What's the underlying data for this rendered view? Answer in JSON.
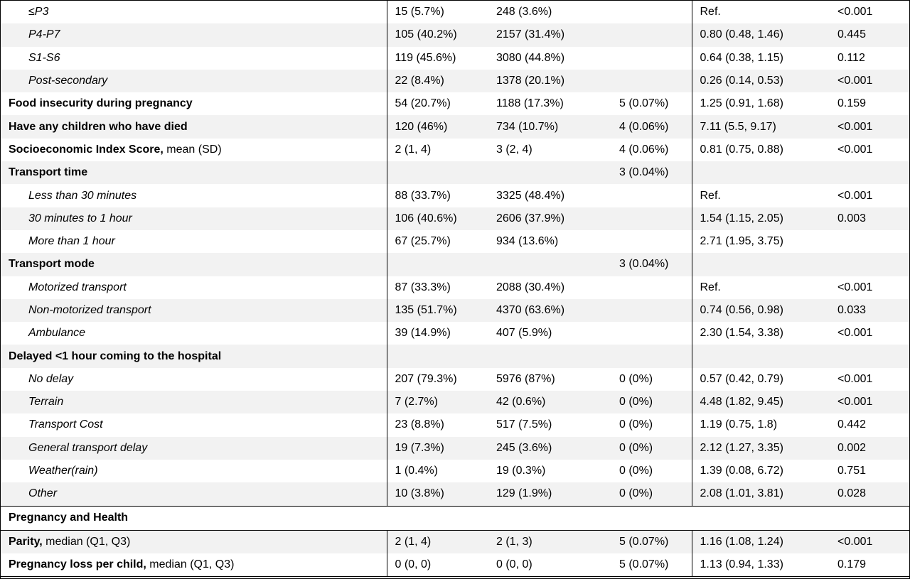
{
  "rows": [
    {
      "kind": "sub",
      "label": "≤P3",
      "c1": "15 (5.7%)",
      "c2": "248 (3.6%)",
      "c3": "",
      "c4": "Ref.",
      "c5": "<0.001"
    },
    {
      "kind": "sub",
      "label": "P4-P7",
      "c1": "105 (40.2%)",
      "c2": "2157 (31.4%)",
      "c3": "",
      "c4": "0.80 (0.48, 1.46)",
      "c5": "0.445"
    },
    {
      "kind": "sub",
      "label": "S1-S6",
      "c1": "119 (45.6%)",
      "c2": "3080 (44.8%)",
      "c3": "",
      "c4": "0.64 (0.38, 1.15)",
      "c5": "0.112"
    },
    {
      "kind": "sub",
      "label": "Post-secondary",
      "c1": "22 (8.4%)",
      "c2": "1378 (20.1%)",
      "c3": "",
      "c4": "0.26 (0.14, 0.53)",
      "c5": "<0.001"
    },
    {
      "kind": "main",
      "label": "Food insecurity during pregnancy",
      "suffix": "",
      "c1": "54 (20.7%)",
      "c2": "1188 (17.3%)",
      "c3": "5 (0.07%)",
      "c4": "1.25 (0.91, 1.68)",
      "c5": "0.159"
    },
    {
      "kind": "main",
      "label": "Have any children who have died",
      "suffix": "",
      "c1": "120 (46%)",
      "c2": "734 (10.7%)",
      "c3": "4 (0.06%)",
      "c4": "7.11 (5.5, 9.17)",
      "c5": "<0.001"
    },
    {
      "kind": "main",
      "label": "Socioeconomic Index Score,",
      "suffix": " mean (SD)",
      "c1": "2 (1, 4)",
      "c2": "3 (2, 4)",
      "c3": "4 (0.06%)",
      "c4": "0.81 (0.75, 0.88)",
      "c5": "<0.001"
    },
    {
      "kind": "main",
      "label": "Transport time",
      "suffix": "",
      "c1": "",
      "c2": "",
      "c3": "3 (0.04%)",
      "c4": "",
      "c5": ""
    },
    {
      "kind": "sub",
      "label": "Less than 30 minutes",
      "c1": "88 (33.7%)",
      "c2": "3325 (48.4%)",
      "c3": "",
      "c4": "Ref.",
      "c5": "<0.001"
    },
    {
      "kind": "sub",
      "label": "30 minutes to 1 hour",
      "c1": "106 (40.6%)",
      "c2": "2606 (37.9%)",
      "c3": "",
      "c4": "1.54 (1.15, 2.05)",
      "c5": "0.003"
    },
    {
      "kind": "sub",
      "label": "More than 1 hour",
      "c1": "67 (25.7%)",
      "c2": "934 (13.6%)",
      "c3": "",
      "c4": "2.71 (1.95, 3.75)",
      "c5": ""
    },
    {
      "kind": "main",
      "label": "Transport mode",
      "suffix": "",
      "c1": "",
      "c2": "",
      "c3": "3 (0.04%)",
      "c4": "",
      "c5": ""
    },
    {
      "kind": "sub",
      "label": "Motorized transport",
      "c1": "87 (33.3%)",
      "c2": "2088 (30.4%)",
      "c3": "",
      "c4": "Ref.",
      "c5": "<0.001"
    },
    {
      "kind": "sub",
      "label": "Non-motorized transport",
      "c1": "135 (51.7%)",
      "c2": "4370 (63.6%)",
      "c3": "",
      "c4": "0.74 (0.56, 0.98)",
      "c5": "0.033"
    },
    {
      "kind": "sub",
      "label": "Ambulance",
      "c1": "39 (14.9%)",
      "c2": "407 (5.9%)",
      "c3": "",
      "c4": "2.30 (1.54, 3.38)",
      "c5": "<0.001"
    },
    {
      "kind": "main",
      "label": "Delayed <1 hour coming to the hospital",
      "suffix": "",
      "c1": "",
      "c2": "",
      "c3": "",
      "c4": "",
      "c5": ""
    },
    {
      "kind": "sub",
      "label": "No delay",
      "c1": "207 (79.3%)",
      "c2": "5976 (87%)",
      "c3": "0 (0%)",
      "c4": "0.57 (0.42, 0.79)",
      "c5": "<0.001"
    },
    {
      "kind": "sub",
      "label": "Terrain",
      "c1": "7 (2.7%)",
      "c2": "42 (0.6%)",
      "c3": "0 (0%)",
      "c4": "4.48 (1.82, 9.45)",
      "c5": "<0.001"
    },
    {
      "kind": "sub",
      "label": "Transport Cost",
      "c1": "23 (8.8%)",
      "c2": "517 (7.5%)",
      "c3": "0 (0%)",
      "c4": "1.19 (0.75, 1.8)",
      "c5": "0.442"
    },
    {
      "kind": "sub",
      "label": "General transport delay",
      "c1": "19 (7.3%)",
      "c2": "245 (3.6%)",
      "c3": "0 (0%)",
      "c4": "2.12 (1.27, 3.35)",
      "c5": "0.002"
    },
    {
      "kind": "sub",
      "label": "Weather(rain)",
      "c1": "1 (0.4%)",
      "c2": "19 (0.3%)",
      "c3": "0 (0%)",
      "c4": "1.39 (0.08, 6.72)",
      "c5": "0.751"
    },
    {
      "kind": "sub",
      "label": "Other",
      "c1": "10 (3.8%)",
      "c2": "129 (1.9%)",
      "c3": "0 (0%)",
      "c4": "2.08 (1.01, 3.81)",
      "c5": "0.028"
    },
    {
      "kind": "section",
      "label": "Pregnancy and Health"
    },
    {
      "kind": "main",
      "label": "Parity,",
      "suffix": " median (Q1, Q3)",
      "c1": "2 (1, 4)",
      "c2": "2 (1, 3)",
      "c3": "5 (0.07%)",
      "c4": "1.16 (1.08, 1.24)",
      "c5": "<0.001"
    },
    {
      "kind": "main",
      "label": "Pregnancy loss per child,",
      "suffix": " median (Q1, Q3)",
      "c1": "0 (0, 0)",
      "c2": "0 (0, 0)",
      "c3": "5 (0.07%)",
      "c4": "1.13 (0.94, 1.33)",
      "c5": "0.179"
    }
  ]
}
